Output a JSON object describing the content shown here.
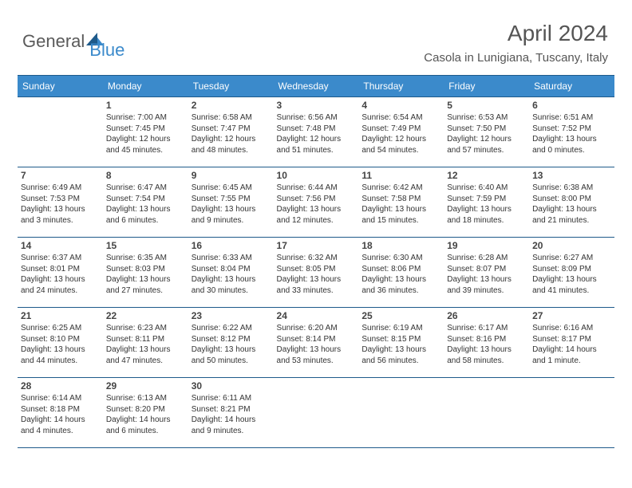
{
  "logo": {
    "part1": "General",
    "part2": "Blue"
  },
  "title": "April 2024",
  "subtitle": "Casola in Lunigiana, Tuscany, Italy",
  "colors": {
    "header_bg": "#3b8acb",
    "header_text": "#ffffff",
    "border": "#1e5a8a",
    "logo_grey": "#5a5a5a",
    "logo_blue": "#3b8acb",
    "title_color": "#555555",
    "text_color": "#333333",
    "background": "#ffffff"
  },
  "weekdays": [
    "Sunday",
    "Monday",
    "Tuesday",
    "Wednesday",
    "Thursday",
    "Friday",
    "Saturday"
  ],
  "weeks": [
    [
      {
        "blank": true
      },
      {
        "num": "1",
        "sunrise": "Sunrise: 7:00 AM",
        "sunset": "Sunset: 7:45 PM",
        "daylight": "Daylight: 12 hours and 45 minutes."
      },
      {
        "num": "2",
        "sunrise": "Sunrise: 6:58 AM",
        "sunset": "Sunset: 7:47 PM",
        "daylight": "Daylight: 12 hours and 48 minutes."
      },
      {
        "num": "3",
        "sunrise": "Sunrise: 6:56 AM",
        "sunset": "Sunset: 7:48 PM",
        "daylight": "Daylight: 12 hours and 51 minutes."
      },
      {
        "num": "4",
        "sunrise": "Sunrise: 6:54 AM",
        "sunset": "Sunset: 7:49 PM",
        "daylight": "Daylight: 12 hours and 54 minutes."
      },
      {
        "num": "5",
        "sunrise": "Sunrise: 6:53 AM",
        "sunset": "Sunset: 7:50 PM",
        "daylight": "Daylight: 12 hours and 57 minutes."
      },
      {
        "num": "6",
        "sunrise": "Sunrise: 6:51 AM",
        "sunset": "Sunset: 7:52 PM",
        "daylight": "Daylight: 13 hours and 0 minutes."
      }
    ],
    [
      {
        "num": "7",
        "sunrise": "Sunrise: 6:49 AM",
        "sunset": "Sunset: 7:53 PM",
        "daylight": "Daylight: 13 hours and 3 minutes."
      },
      {
        "num": "8",
        "sunrise": "Sunrise: 6:47 AM",
        "sunset": "Sunset: 7:54 PM",
        "daylight": "Daylight: 13 hours and 6 minutes."
      },
      {
        "num": "9",
        "sunrise": "Sunrise: 6:45 AM",
        "sunset": "Sunset: 7:55 PM",
        "daylight": "Daylight: 13 hours and 9 minutes."
      },
      {
        "num": "10",
        "sunrise": "Sunrise: 6:44 AM",
        "sunset": "Sunset: 7:56 PM",
        "daylight": "Daylight: 13 hours and 12 minutes."
      },
      {
        "num": "11",
        "sunrise": "Sunrise: 6:42 AM",
        "sunset": "Sunset: 7:58 PM",
        "daylight": "Daylight: 13 hours and 15 minutes."
      },
      {
        "num": "12",
        "sunrise": "Sunrise: 6:40 AM",
        "sunset": "Sunset: 7:59 PM",
        "daylight": "Daylight: 13 hours and 18 minutes."
      },
      {
        "num": "13",
        "sunrise": "Sunrise: 6:38 AM",
        "sunset": "Sunset: 8:00 PM",
        "daylight": "Daylight: 13 hours and 21 minutes."
      }
    ],
    [
      {
        "num": "14",
        "sunrise": "Sunrise: 6:37 AM",
        "sunset": "Sunset: 8:01 PM",
        "daylight": "Daylight: 13 hours and 24 minutes."
      },
      {
        "num": "15",
        "sunrise": "Sunrise: 6:35 AM",
        "sunset": "Sunset: 8:03 PM",
        "daylight": "Daylight: 13 hours and 27 minutes."
      },
      {
        "num": "16",
        "sunrise": "Sunrise: 6:33 AM",
        "sunset": "Sunset: 8:04 PM",
        "daylight": "Daylight: 13 hours and 30 minutes."
      },
      {
        "num": "17",
        "sunrise": "Sunrise: 6:32 AM",
        "sunset": "Sunset: 8:05 PM",
        "daylight": "Daylight: 13 hours and 33 minutes."
      },
      {
        "num": "18",
        "sunrise": "Sunrise: 6:30 AM",
        "sunset": "Sunset: 8:06 PM",
        "daylight": "Daylight: 13 hours and 36 minutes."
      },
      {
        "num": "19",
        "sunrise": "Sunrise: 6:28 AM",
        "sunset": "Sunset: 8:07 PM",
        "daylight": "Daylight: 13 hours and 39 minutes."
      },
      {
        "num": "20",
        "sunrise": "Sunrise: 6:27 AM",
        "sunset": "Sunset: 8:09 PM",
        "daylight": "Daylight: 13 hours and 41 minutes."
      }
    ],
    [
      {
        "num": "21",
        "sunrise": "Sunrise: 6:25 AM",
        "sunset": "Sunset: 8:10 PM",
        "daylight": "Daylight: 13 hours and 44 minutes."
      },
      {
        "num": "22",
        "sunrise": "Sunrise: 6:23 AM",
        "sunset": "Sunset: 8:11 PM",
        "daylight": "Daylight: 13 hours and 47 minutes."
      },
      {
        "num": "23",
        "sunrise": "Sunrise: 6:22 AM",
        "sunset": "Sunset: 8:12 PM",
        "daylight": "Daylight: 13 hours and 50 minutes."
      },
      {
        "num": "24",
        "sunrise": "Sunrise: 6:20 AM",
        "sunset": "Sunset: 8:14 PM",
        "daylight": "Daylight: 13 hours and 53 minutes."
      },
      {
        "num": "25",
        "sunrise": "Sunrise: 6:19 AM",
        "sunset": "Sunset: 8:15 PM",
        "daylight": "Daylight: 13 hours and 56 minutes."
      },
      {
        "num": "26",
        "sunrise": "Sunrise: 6:17 AM",
        "sunset": "Sunset: 8:16 PM",
        "daylight": "Daylight: 13 hours and 58 minutes."
      },
      {
        "num": "27",
        "sunrise": "Sunrise: 6:16 AM",
        "sunset": "Sunset: 8:17 PM",
        "daylight": "Daylight: 14 hours and 1 minute."
      }
    ],
    [
      {
        "num": "28",
        "sunrise": "Sunrise: 6:14 AM",
        "sunset": "Sunset: 8:18 PM",
        "daylight": "Daylight: 14 hours and 4 minutes."
      },
      {
        "num": "29",
        "sunrise": "Sunrise: 6:13 AM",
        "sunset": "Sunset: 8:20 PM",
        "daylight": "Daylight: 14 hours and 6 minutes."
      },
      {
        "num": "30",
        "sunrise": "Sunrise: 6:11 AM",
        "sunset": "Sunset: 8:21 PM",
        "daylight": "Daylight: 14 hours and 9 minutes."
      },
      {
        "blank": true
      },
      {
        "blank": true
      },
      {
        "blank": true
      },
      {
        "blank": true
      }
    ]
  ]
}
